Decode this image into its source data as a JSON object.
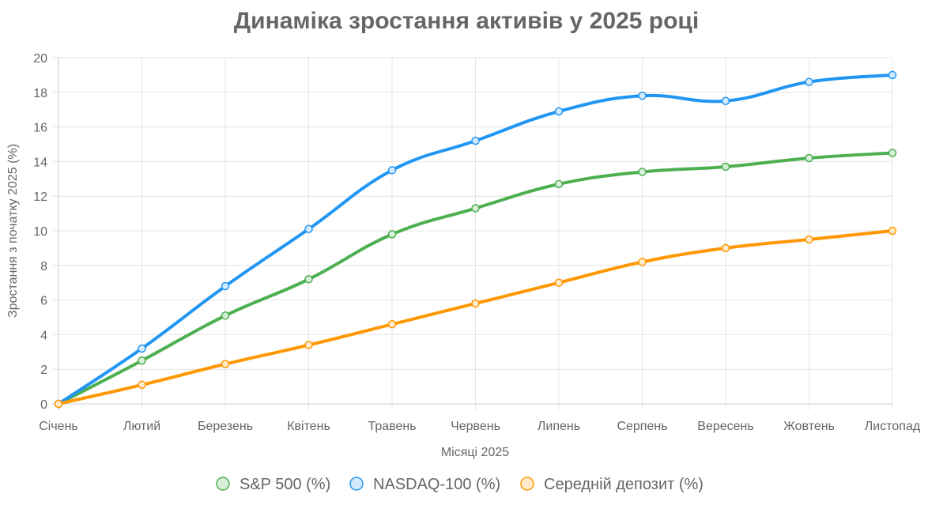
{
  "chart_data": {
    "type": "line",
    "title": "Динаміка зростання активів у 2025 році",
    "xlabel": "Місяці 2025",
    "ylabel": "Зростання з початку 2025 (%)",
    "categories": [
      "Січень",
      "Лютий",
      "Березень",
      "Квітень",
      "Травень",
      "Червень",
      "Липень",
      "Серпень",
      "Вересень",
      "Жовтень",
      "Листопад"
    ],
    "ylim": [
      0,
      20
    ],
    "yticks": [
      0,
      2,
      4,
      6,
      8,
      10,
      12,
      14,
      16,
      18,
      20
    ],
    "grid": true,
    "legend_position": "bottom",
    "series": [
      {
        "name": "S&P 500 (%)",
        "color": "#4caf50",
        "fill": "#d7efd8",
        "values": [
          0,
          2.5,
          5.1,
          7.2,
          9.8,
          11.3,
          12.7,
          13.4,
          13.7,
          14.2,
          14.5
        ]
      },
      {
        "name": "NASDAQ-100 (%)",
        "color": "#2196f3",
        "fill": "#d3eafd",
        "values": [
          0,
          3.2,
          6.8,
          10.1,
          13.5,
          15.2,
          16.9,
          17.8,
          17.5,
          18.6,
          19.0
        ]
      },
      {
        "name": "Середній депозит (%)",
        "color": "#ff9800",
        "fill": "#ffeacc",
        "values": [
          0,
          1.1,
          2.3,
          3.4,
          4.6,
          5.8,
          7.0,
          8.2,
          9.0,
          9.5,
          10.0
        ]
      }
    ]
  }
}
